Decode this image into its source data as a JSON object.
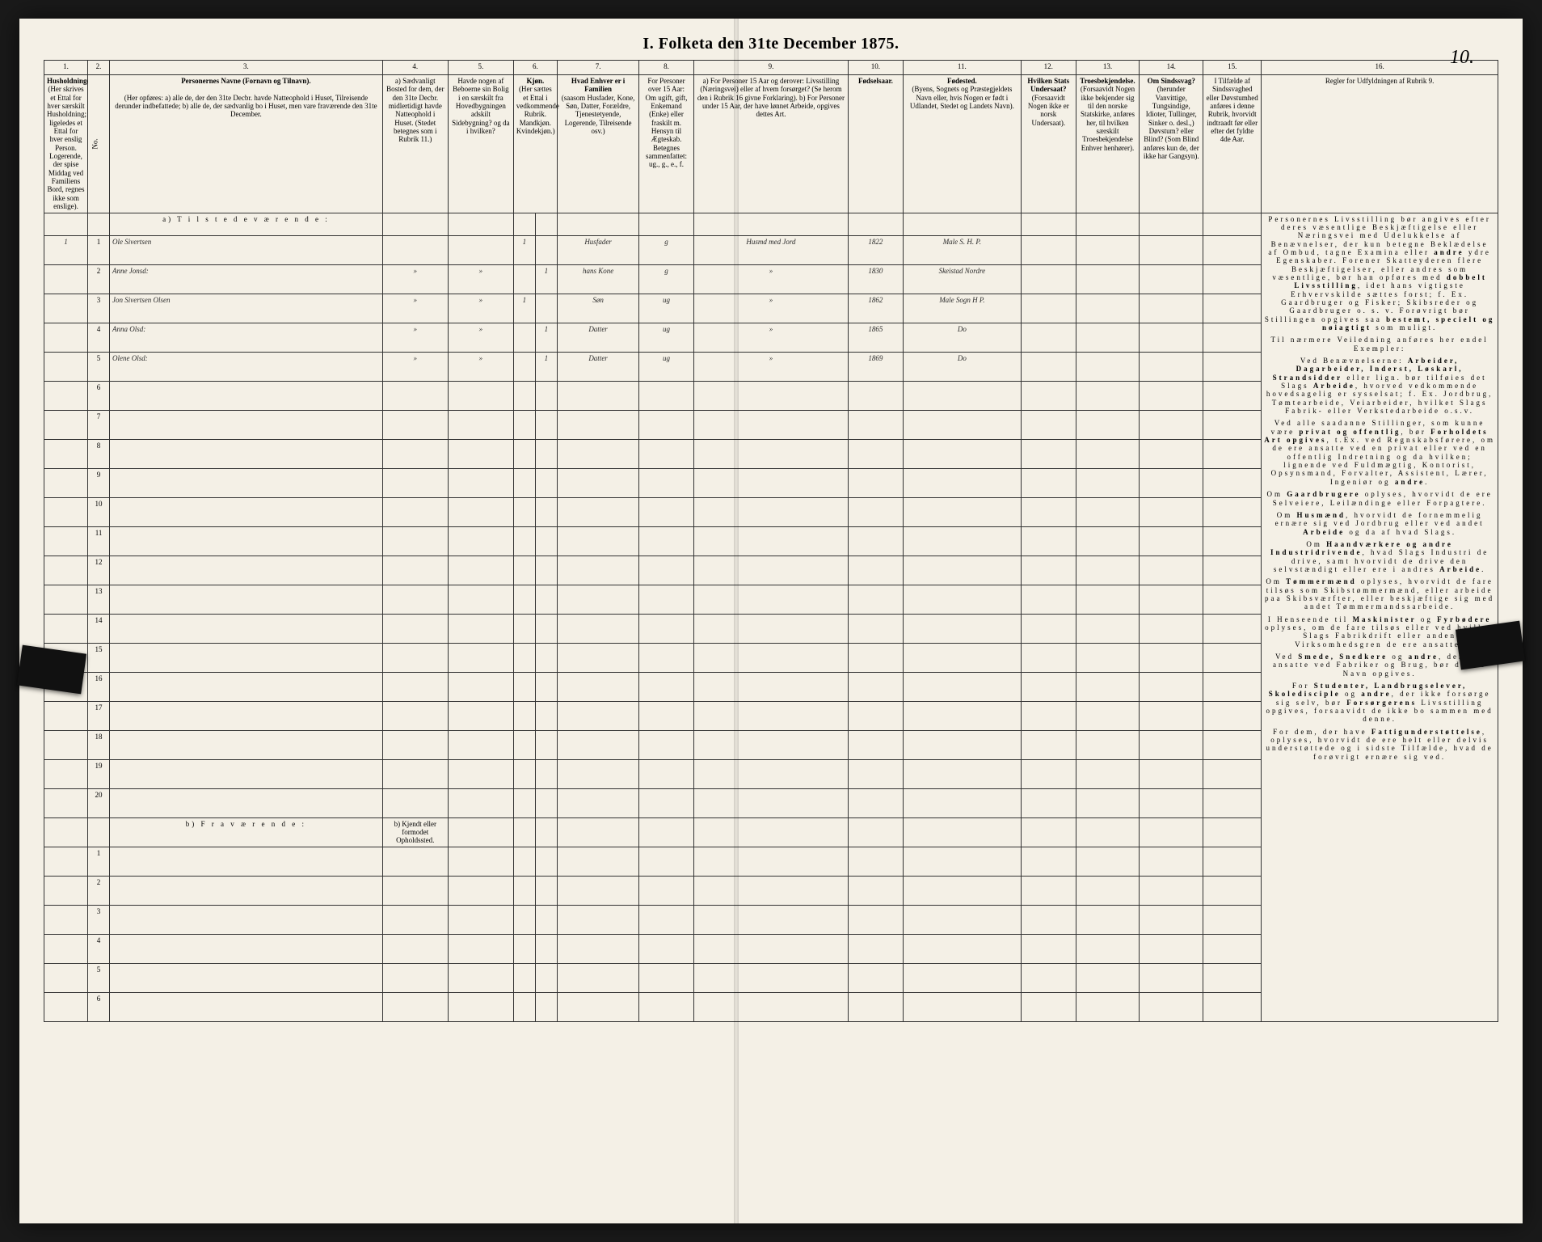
{
  "title": "I.  Folketa den 31te December 1875.",
  "page_number": "10.",
  "columns": {
    "c1": "1.",
    "c2": "2.",
    "c3": "3.",
    "c4": "4.",
    "c5": "5.",
    "c6": "6.",
    "c7": "7.",
    "c8": "8.",
    "c9": "9.",
    "c10": "10.",
    "c11": "11.",
    "c12": "12.",
    "c13": "13.",
    "c14": "14.",
    "c15": "15.",
    "c16": "16."
  },
  "headers": {
    "h1": "Husholdninger.",
    "h1_sub": "(Her skrives et Ettal for hver særskilt Husholdning; ligeledes et Ettal for hver enslig Person. Logerende, der spise Middag ved Familiens Bord, regnes ikke som enslige).",
    "h2": "No.",
    "h3_title": "Personernes Navne (Fornavn og Tilnavn).",
    "h3_sub": "(Her opføres: a) alle de, der den 31te Decbr. havde Natteophold i Huset, Tilreisende derunder indbefattede; b) alle de, der sædvanlig bo i Huset, men vare fraværende den 31te December.",
    "h4": "a) Sædvanligt Bosted for dem, der den 31te Decbr. midlertidigt havde Natteophold i Huset. (Stedet betegnes som i Rubrik 11.)",
    "h5": "Havde nogen af Beboerne sin Bolig i en særskilt fra Hovedbygningen adskilt Sidebygning? og da i hvilken?",
    "h6": "Kjøn.",
    "h6_sub": "(Her sættes et Ettal i vedkommende Rubrik. Mandkjøn. Kvindekjøn.)",
    "h7": "Hvad Enhver er i Familien",
    "h7_sub": "(saasom Husfader, Kone, Søn, Datter, Forældre, Tjenestetyende, Logerende, Tilreisende osv.)",
    "h8": "For Personer over 15 Aar: Om ugift, gift, Enkemand (Enke) eller fraskilt m. Hensyn til Ægteskab. Betegnes sammenfattet: ug., g., e., f.",
    "h9": "a) For Personer 15 Aar og derover: Livsstilling (Næringsvei) eller af hvem forsørget? (Se herom den i Rubrik 16 givne Forklaring). b) For Personer under 15 Aar, der have lønnet Arbeide, opgives dettes Art.",
    "h10": "Fødselsaar.",
    "h11_title": "Fødested.",
    "h11_sub": "(Byens, Sognets og Præstegjeldets Navn eller, hvis Nogen er født i Udlandet, Stedet og Landets Navn).",
    "h12": "Hvilken Stats Undersaat?",
    "h12_sub": "(Forsaavidt Nogen ikke er norsk Undersaat).",
    "h13": "Troesbekjendelse.",
    "h13_sub": "(Forsaavidt Nogen ikke bekjender sig til den norske Statskirke, anføres her, til hvilken særskilt Troesbekjendelse Enhver henhører).",
    "h14": "Om Sindssvag?",
    "h14_sub": "(herunder Vanvittige, Tungsindige, Idioter, Tullinger, Sinker o. desl.,) Døvstum? eller Blind? (Som Blind anføres kun de, der ikke har Gangsyn).",
    "h15": "I Tilfælde af Sindssvaghed eller Døvstumhed anføres i denne Rubrik, hvorvidt indtraadt før eller efter det fyldte 4de Aar.",
    "h16": "Regler for Udfyldningen af Rubrik 9."
  },
  "section_a": "a)  T i l s t e d e v æ r e n d e :",
  "section_b": "b)   F r a v æ r e n d e :",
  "section_b_col4": "b) Kjendt eller formodet Opholdssted.",
  "rows": [
    {
      "n": "1",
      "name": "Ole Sivertsen",
      "c4": "",
      "c5": "",
      "m": "1",
      "k": "",
      "fam": "Husfader",
      "civ": "g",
      "occ": "Husmd med Jord",
      "year": "1822",
      "place": "Male S. H. P."
    },
    {
      "n": "2",
      "name": "Anne Jonsd:",
      "c4": "»",
      "c5": "»",
      "m": "",
      "k": "1",
      "fam": "hans Kone",
      "civ": "g",
      "occ": "»",
      "year": "1830",
      "place": "Skeistad Nordre"
    },
    {
      "n": "3",
      "name": "Jon Sivertsen Olsen",
      "c4": "»",
      "c5": "»",
      "m": "1",
      "k": "",
      "fam": "Søn",
      "civ": "ug",
      "occ": "»",
      "year": "1862",
      "place": "Male Sogn H P."
    },
    {
      "n": "4",
      "name": "Anna Olsd:",
      "c4": "»",
      "c5": "»",
      "m": "",
      "k": "1",
      "fam": "Datter",
      "civ": "ug",
      "occ": "»",
      "year": "1865",
      "place": "Do"
    },
    {
      "n": "5",
      "name": "Olene Olsd:",
      "c4": "»",
      "c5": "»",
      "m": "",
      "k": "1",
      "fam": "Datter",
      "civ": "ug",
      "occ": "»",
      "year": "1869",
      "place": "Do"
    }
  ],
  "row_numbers_empty": [
    "6",
    "7",
    "8",
    "9",
    "10",
    "11",
    "12",
    "13",
    "14",
    "15",
    "16",
    "17",
    "18",
    "19",
    "20"
  ],
  "row_numbers_b": [
    "1",
    "2",
    "3",
    "4",
    "5",
    "6"
  ],
  "instructions": {
    "p1": "Personernes Livsstilling bør angives efter deres væsentlige Beskjæftigelse eller Næringsvei med Udelukkelse af Benævnelser, der kun betegne Beklædelse af Ombud, tagne Examina eller andre ydre Egenskaber. Forener Skatteyderen flere Beskjæftigelser, eller andres som væsentlige, bør han opføres med dobbelt Livsstilling, idet hans vigtigste Erhvervskilde sættes forst; f. Ex. Gaardbruger og Fisker; Skibsreder og Gaardbruger o. s. v. Forøvrigt bør Stillingen opgives saa bestemt, specielt og nøiagtigt som muligt.",
    "p2": "Til nærmere Veiledning anføres her endel Exempler:",
    "p3": "Ved Benævnelserne: Arbeider, Dagarbeider, Inderst, Løskarl, Strandsidder eller lign. bør tilføies det Slags Arbeide, hvorved vedkommende hovedsagelig er sysselsat; f. Ex. Jordbrug, Tømtearbeide, Veiarbeider, hvilket Slags Fabrik- eller Verkstedarbeide o.s.v.",
    "p4": "Ved alle saadanne Stillinger, som kunne være privat og offentlig, bør Forholdets Art opgives, t.Ex. ved Regnskabsførere, om de ere ansatte ved en privat eller ved en offentlig Indretning og da hvilken; lignende ved Fuldmægtig, Kontorist, Opsynsmand, Forvalter, Assistent, Lærer, Ingeniør og andre.",
    "p5": "Om Gaardbrugere oplyses, hvorvidt de ere Selveiere, Leilændinge eller Forpagtere.",
    "p6": "Om Husmænd, hvorvidt de fornemmelig ernære sig ved Jordbrug eller ved andet Arbeide og da af hvad Slags.",
    "p7": "Om Haandværkere og andre Industridrivende, hvad Slags Industri de drive, samt hvorvidt de drive den selvstændigt eller ere i andres Arbeide.",
    "p8": "Om Tømmermænd oplyses, hvorvidt de fare tilsøs som Skibstømmermænd, eller arbeide paa Skibsværfter, eller beskjæftige sig med andet Tømmermandssarbeide.",
    "p9": "I Henseende til Maskinister og Fyrbødere oplyses, om de fare tilsøs eller ved hvilket Slags Fabrikdrift eller anden Virksomhedsgren de ere ansatte.",
    "p10": "Ved Smede, Snedkere og andre, der ere ansatte ved Fabriker og Brug, bør dettes Navn opgives.",
    "p11": "For Studenter, Landbrugselever, Skoledisciple og andre, der ikke forsørge sig selv, bør Forsørgerens Livsstilling opgives, forsaavidt de ikke bo sammen med denne.",
    "p12": "For dem, der have Fattigunderstøttelse, oplyses, hvorvidt de ere helt eller delvis understøttede og i sidste Tilfælde, hvad de forøvrigt ernære sig ved."
  },
  "colwidths": {
    "c1": 48,
    "c2": 24,
    "c3": 300,
    "c4": 72,
    "c5": 72,
    "c6m": 24,
    "c6k": 24,
    "c7": 90,
    "c8": 60,
    "c9": 170,
    "c10": 60,
    "c11": 130,
    "c12": 60,
    "c13": 70,
    "c14": 70,
    "c15": 64,
    "c16": 260
  }
}
